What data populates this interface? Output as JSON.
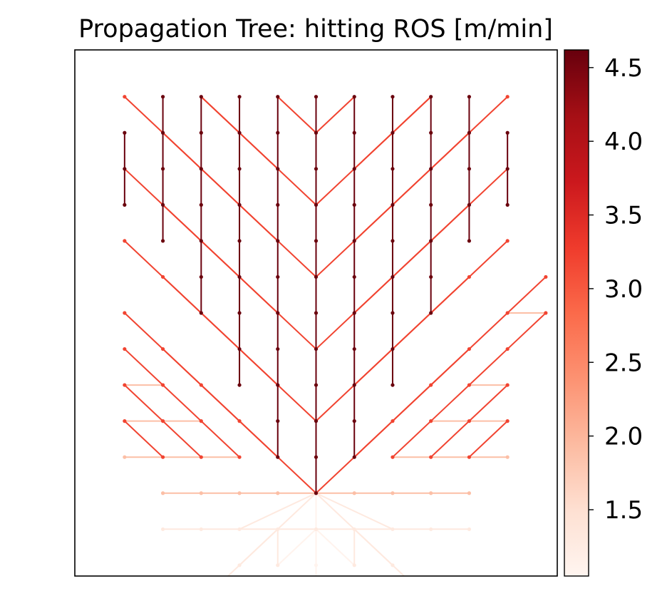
{
  "chart_data": {
    "type": "network",
    "title": "Propagation Tree: hitting ROS [m/min]",
    "colorbar": {
      "colormap": "Reds",
      "range": [
        1.05,
        4.62
      ],
      "ticks": [
        1.5,
        2.0,
        2.5,
        3.0,
        3.5,
        4.0,
        4.5
      ],
      "tick_labels": [
        "1.5",
        "2.0",
        "2.5",
        "3.0",
        "3.5",
        "4.0",
        "4.5"
      ]
    },
    "axes": {
      "xlim": [
        -6.3,
        6.3
      ],
      "ylim": [
        -8.3,
        6.3
      ],
      "ticks_visible": false
    },
    "nodes": {
      "columns_x": [
        -5,
        -4,
        -3,
        -2,
        -1,
        0,
        1,
        2,
        3,
        4,
        5
      ],
      "rows_y": [
        5,
        4,
        3,
        2,
        1,
        0,
        -1,
        -2,
        -3,
        -4,
        -5,
        -6,
        -7
      ]
    },
    "edges": [
      {
        "from": [
          0,
          -6
        ],
        "to": [
          0,
          5
        ],
        "ros": 4.6
      },
      {
        "from": [
          -1,
          -5
        ],
        "to": [
          -1,
          5
        ],
        "ros": 4.6
      },
      {
        "from": [
          1,
          -5
        ],
        "to": [
          1,
          5
        ],
        "ros": 4.6
      },
      {
        "from": [
          -2,
          -3
        ],
        "to": [
          -2,
          5
        ],
        "ros": 4.6
      },
      {
        "from": [
          2,
          -3
        ],
        "to": [
          2,
          5
        ],
        "ros": 4.6
      },
      {
        "from": [
          -3,
          -1
        ],
        "to": [
          -3,
          5
        ],
        "ros": 4.6
      },
      {
        "from": [
          3,
          -1
        ],
        "to": [
          3,
          5
        ],
        "ros": 4.6
      },
      {
        "from": [
          -4,
          1
        ],
        "to": [
          -4,
          5
        ],
        "ros": 4.6
      },
      {
        "from": [
          4,
          1
        ],
        "to": [
          4,
          5
        ],
        "ros": 4.6
      },
      {
        "from": [
          -5,
          2
        ],
        "to": [
          -5,
          4
        ],
        "ros": 4.6
      },
      {
        "from": [
          5,
          2
        ],
        "to": [
          5,
          4
        ],
        "ros": 4.6
      },
      {
        "from": [
          0,
          -6
        ],
        "to": [
          -4,
          -2
        ],
        "ros": 3.2
      },
      {
        "from": [
          -1,
          -5
        ],
        "to": [
          -5,
          -1
        ],
        "ros": 3.2
      },
      {
        "from": [
          -2,
          -5
        ],
        "to": [
          -5,
          -2
        ],
        "ros": 3.2
      },
      {
        "from": [
          -3,
          -5
        ],
        "to": [
          -5,
          -3
        ],
        "ros": 3.2
      },
      {
        "from": [
          -4,
          -5
        ],
        "to": [
          -5,
          -4
        ],
        "ros": 3.2
      },
      {
        "from": [
          -1,
          -3
        ],
        "to": [
          -5,
          1
        ],
        "ros": 3.2
      },
      {
        "from": [
          -1,
          -1
        ],
        "to": [
          -5,
          3
        ],
        "ros": 3.2
      },
      {
        "from": [
          -1,
          1
        ],
        "to": [
          -5,
          5
        ],
        "ros": 3.2
      },
      {
        "from": [
          -1,
          3
        ],
        "to": [
          -3,
          5
        ],
        "ros": 3.2
      },
      {
        "from": [
          0,
          4
        ],
        "to": [
          -1,
          5
        ],
        "ros": 3.2
      },
      {
        "from": [
          0,
          2
        ],
        "to": [
          -3,
          5
        ],
        "ros": 3.2
      },
      {
        "from": [
          0,
          0
        ],
        "to": [
          -4,
          4
        ],
        "ros": 3.2
      },
      {
        "from": [
          0,
          -2
        ],
        "to": [
          -4,
          2
        ],
        "ros": 3.2
      },
      {
        "from": [
          0,
          -4
        ],
        "to": [
          -4,
          0
        ],
        "ros": 3.2
      },
      {
        "from": [
          0,
          -6
        ],
        "to": [
          4,
          -2
        ],
        "ros": 3.2
      },
      {
        "from": [
          1,
          -5
        ],
        "to": [
          5,
          -1
        ],
        "ros": 3.2
      },
      {
        "from": [
          2,
          -5
        ],
        "to": [
          5,
          -2
        ],
        "ros": 3.2
      },
      {
        "from": [
          3,
          -5
        ],
        "to": [
          5,
          -3
        ],
        "ros": 3.2
      },
      {
        "from": [
          4,
          -5
        ],
        "to": [
          5,
          -4
        ],
        "ros": 3.2
      },
      {
        "from": [
          1,
          -3
        ],
        "to": [
          5,
          1
        ],
        "ros": 3.2
      },
      {
        "from": [
          1,
          -1
        ],
        "to": [
          5,
          3
        ],
        "ros": 3.2
      },
      {
        "from": [
          1,
          1
        ],
        "to": [
          5,
          5
        ],
        "ros": 3.2
      },
      {
        "from": [
          1,
          3
        ],
        "to": [
          3,
          5
        ],
        "ros": 3.2
      },
      {
        "from": [
          0,
          4
        ],
        "to": [
          1,
          5
        ],
        "ros": 3.2
      },
      {
        "from": [
          0,
          2
        ],
        "to": [
          3,
          5
        ],
        "ros": 3.2
      },
      {
        "from": [
          0,
          0
        ],
        "to": [
          4,
          4
        ],
        "ros": 3.2
      },
      {
        "from": [
          0,
          -2
        ],
        "to": [
          4,
          2
        ],
        "ros": 3.2
      },
      {
        "from": [
          0,
          -4
        ],
        "to": [
          4,
          0
        ],
        "ros": 3.2
      },
      {
        "from": [
          5,
          -1
        ],
        "to": [
          6,
          0
        ],
        "ros": 3.2
      },
      {
        "from": [
          5,
          -2
        ],
        "to": [
          6,
          -1
        ],
        "ros": 3.2
      },
      {
        "from": [
          -4,
          -6
        ],
        "to": [
          4,
          -6
        ],
        "ros": 1.9
      },
      {
        "from": [
          -5,
          -5
        ],
        "to": [
          -2,
          -5
        ],
        "ros": 1.9
      },
      {
        "from": [
          2,
          -5
        ],
        "to": [
          5,
          -5
        ],
        "ros": 1.9
      },
      {
        "from": [
          -5,
          -4
        ],
        "to": [
          -3,
          -4
        ],
        "ros": 1.9
      },
      {
        "from": [
          3,
          -4
        ],
        "to": [
          5,
          -4
        ],
        "ros": 1.9
      },
      {
        "from": [
          -5,
          -3
        ],
        "to": [
          -4,
          -3
        ],
        "ros": 1.9
      },
      {
        "from": [
          4,
          -3
        ],
        "to": [
          5,
          -3
        ],
        "ros": 1.9
      },
      {
        "from": [
          5,
          -1
        ],
        "to": [
          6,
          -1
        ],
        "ros": 1.9
      },
      {
        "from": [
          0,
          -6
        ],
        "to": [
          -2,
          -7
        ],
        "ros": 1.3
      },
      {
        "from": [
          0,
          -6
        ],
        "to": [
          2,
          -7
        ],
        "ros": 1.3
      },
      {
        "from": [
          -4,
          -7
        ],
        "to": [
          4,
          -7
        ],
        "ros": 1.3
      },
      {
        "from": [
          0,
          -6
        ],
        "to": [
          -2,
          -8
        ],
        "ros": 1.3
      },
      {
        "from": [
          0,
          -6
        ],
        "to": [
          2,
          -8
        ],
        "ros": 1.3
      },
      {
        "from": [
          -1,
          -7
        ],
        "to": [
          -1,
          -8
        ],
        "ros": 1.3
      },
      {
        "from": [
          1,
          -7
        ],
        "to": [
          1,
          -8
        ],
        "ros": 1.3
      },
      {
        "from": [
          -1,
          -7
        ],
        "to": [
          -3,
          -9
        ],
        "ros": 1.3
      },
      {
        "from": [
          1,
          -7
        ],
        "to": [
          3,
          -9
        ],
        "ros": 1.3
      },
      {
        "from": [
          0,
          -6
        ],
        "to": [
          0,
          -9
        ],
        "ros": 1.1
      },
      {
        "from": [
          0,
          -7
        ],
        "to": [
          -1,
          -8
        ],
        "ros": 1.1
      },
      {
        "from": [
          0,
          -7
        ],
        "to": [
          1,
          -8
        ],
        "ros": 1.1
      }
    ]
  }
}
